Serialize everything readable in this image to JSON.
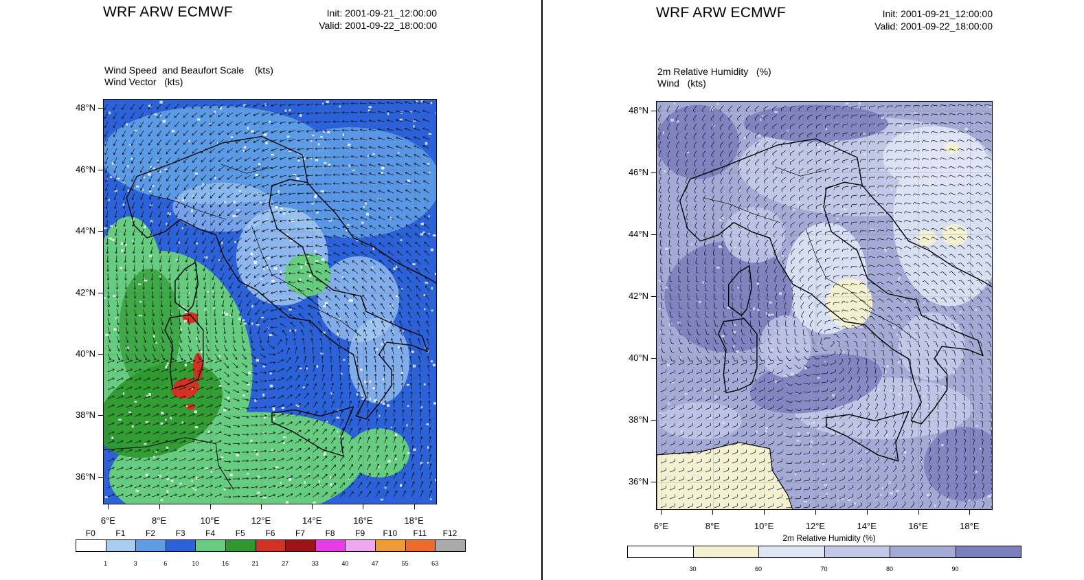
{
  "left": {
    "model_title": "WRF ARW ECMWF",
    "init": "Init: 2001-09-21_12:00:00",
    "valid": "Valid: 2001-09-22_18:00:00",
    "field_line1": "Wind Speed  and Beaufort Scale    (kts)",
    "field_line2": "Wind Vector   (kts)",
    "lat_labels": [
      "48°N",
      "46°N",
      "44°N",
      "42°N",
      "40°N",
      "38°N",
      "36°N"
    ],
    "lon_labels": [
      "6°E",
      "8°E",
      "10°E",
      "12°E",
      "14°E",
      "16°E",
      "18°E"
    ],
    "legend": {
      "categories": [
        "F0",
        "F1",
        "F2",
        "F3",
        "F4",
        "F5",
        "F6",
        "F7",
        "F8",
        "F9",
        "F10",
        "F11",
        "F12"
      ],
      "values": [
        "1",
        "3",
        "6",
        "10",
        "16",
        "21",
        "27",
        "33",
        "40",
        "47",
        "55",
        "63"
      ],
      "colors": [
        "#ffffff",
        "#a6cdf2",
        "#5e9de6",
        "#2c62d9",
        "#66cc80",
        "#2e9a2e",
        "#d23320",
        "#9e1414",
        "#e83ce8",
        "#f2a6f2",
        "#ef9a38",
        "#ee6a2a",
        "#aaaaaa"
      ]
    }
  },
  "right": {
    "model_title": "WRF ARW ECMWF",
    "init": "Init: 2001-09-21_12:00:00",
    "valid": "Valid: 2001-09-22_18:00:00",
    "field_line1": "2m Relative Humidity   (%)",
    "field_line2": "Wind   (kts)",
    "lat_labels": [
      "48°N",
      "46°N",
      "44°N",
      "42°N",
      "40°N",
      "38°N",
      "36°N"
    ],
    "lon_labels": [
      "6°E",
      "8°E",
      "10°E",
      "12°E",
      "14°E",
      "16°E",
      "18°E"
    ],
    "legend": {
      "title": "2m Relative Humidity  (%)",
      "values": [
        "30",
        "60",
        "70",
        "80",
        "90"
      ],
      "colors": [
        "#ffffff",
        "#f4f1d2",
        "#dfe4f6",
        "#c2c8e8",
        "#a4aad6",
        "#7b7fbe"
      ]
    }
  }
}
